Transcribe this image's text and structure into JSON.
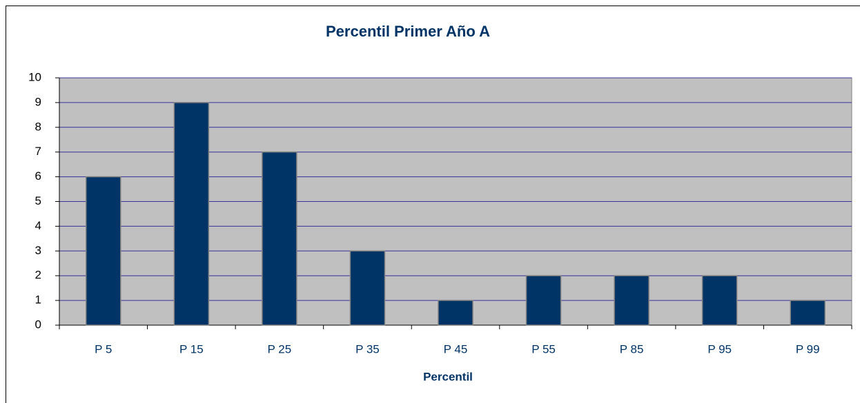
{
  "chart_data": {
    "type": "bar",
    "title": "Percentil   Primer Año  A",
    "x_label": "Percentil",
    "categories": [
      "P 5",
      "P 15",
      "P 25",
      "P 35",
      "P 45",
      "P 55",
      "P 85",
      "P 95",
      "P 99"
    ],
    "values": [
      6,
      9,
      7,
      3,
      1,
      2,
      2,
      2,
      1
    ],
    "color": "#003366",
    "ylim": [
      0,
      10
    ],
    "yticks": [
      0,
      1,
      2,
      3,
      4,
      5,
      6,
      7,
      8,
      9,
      10
    ],
    "grid": true
  }
}
